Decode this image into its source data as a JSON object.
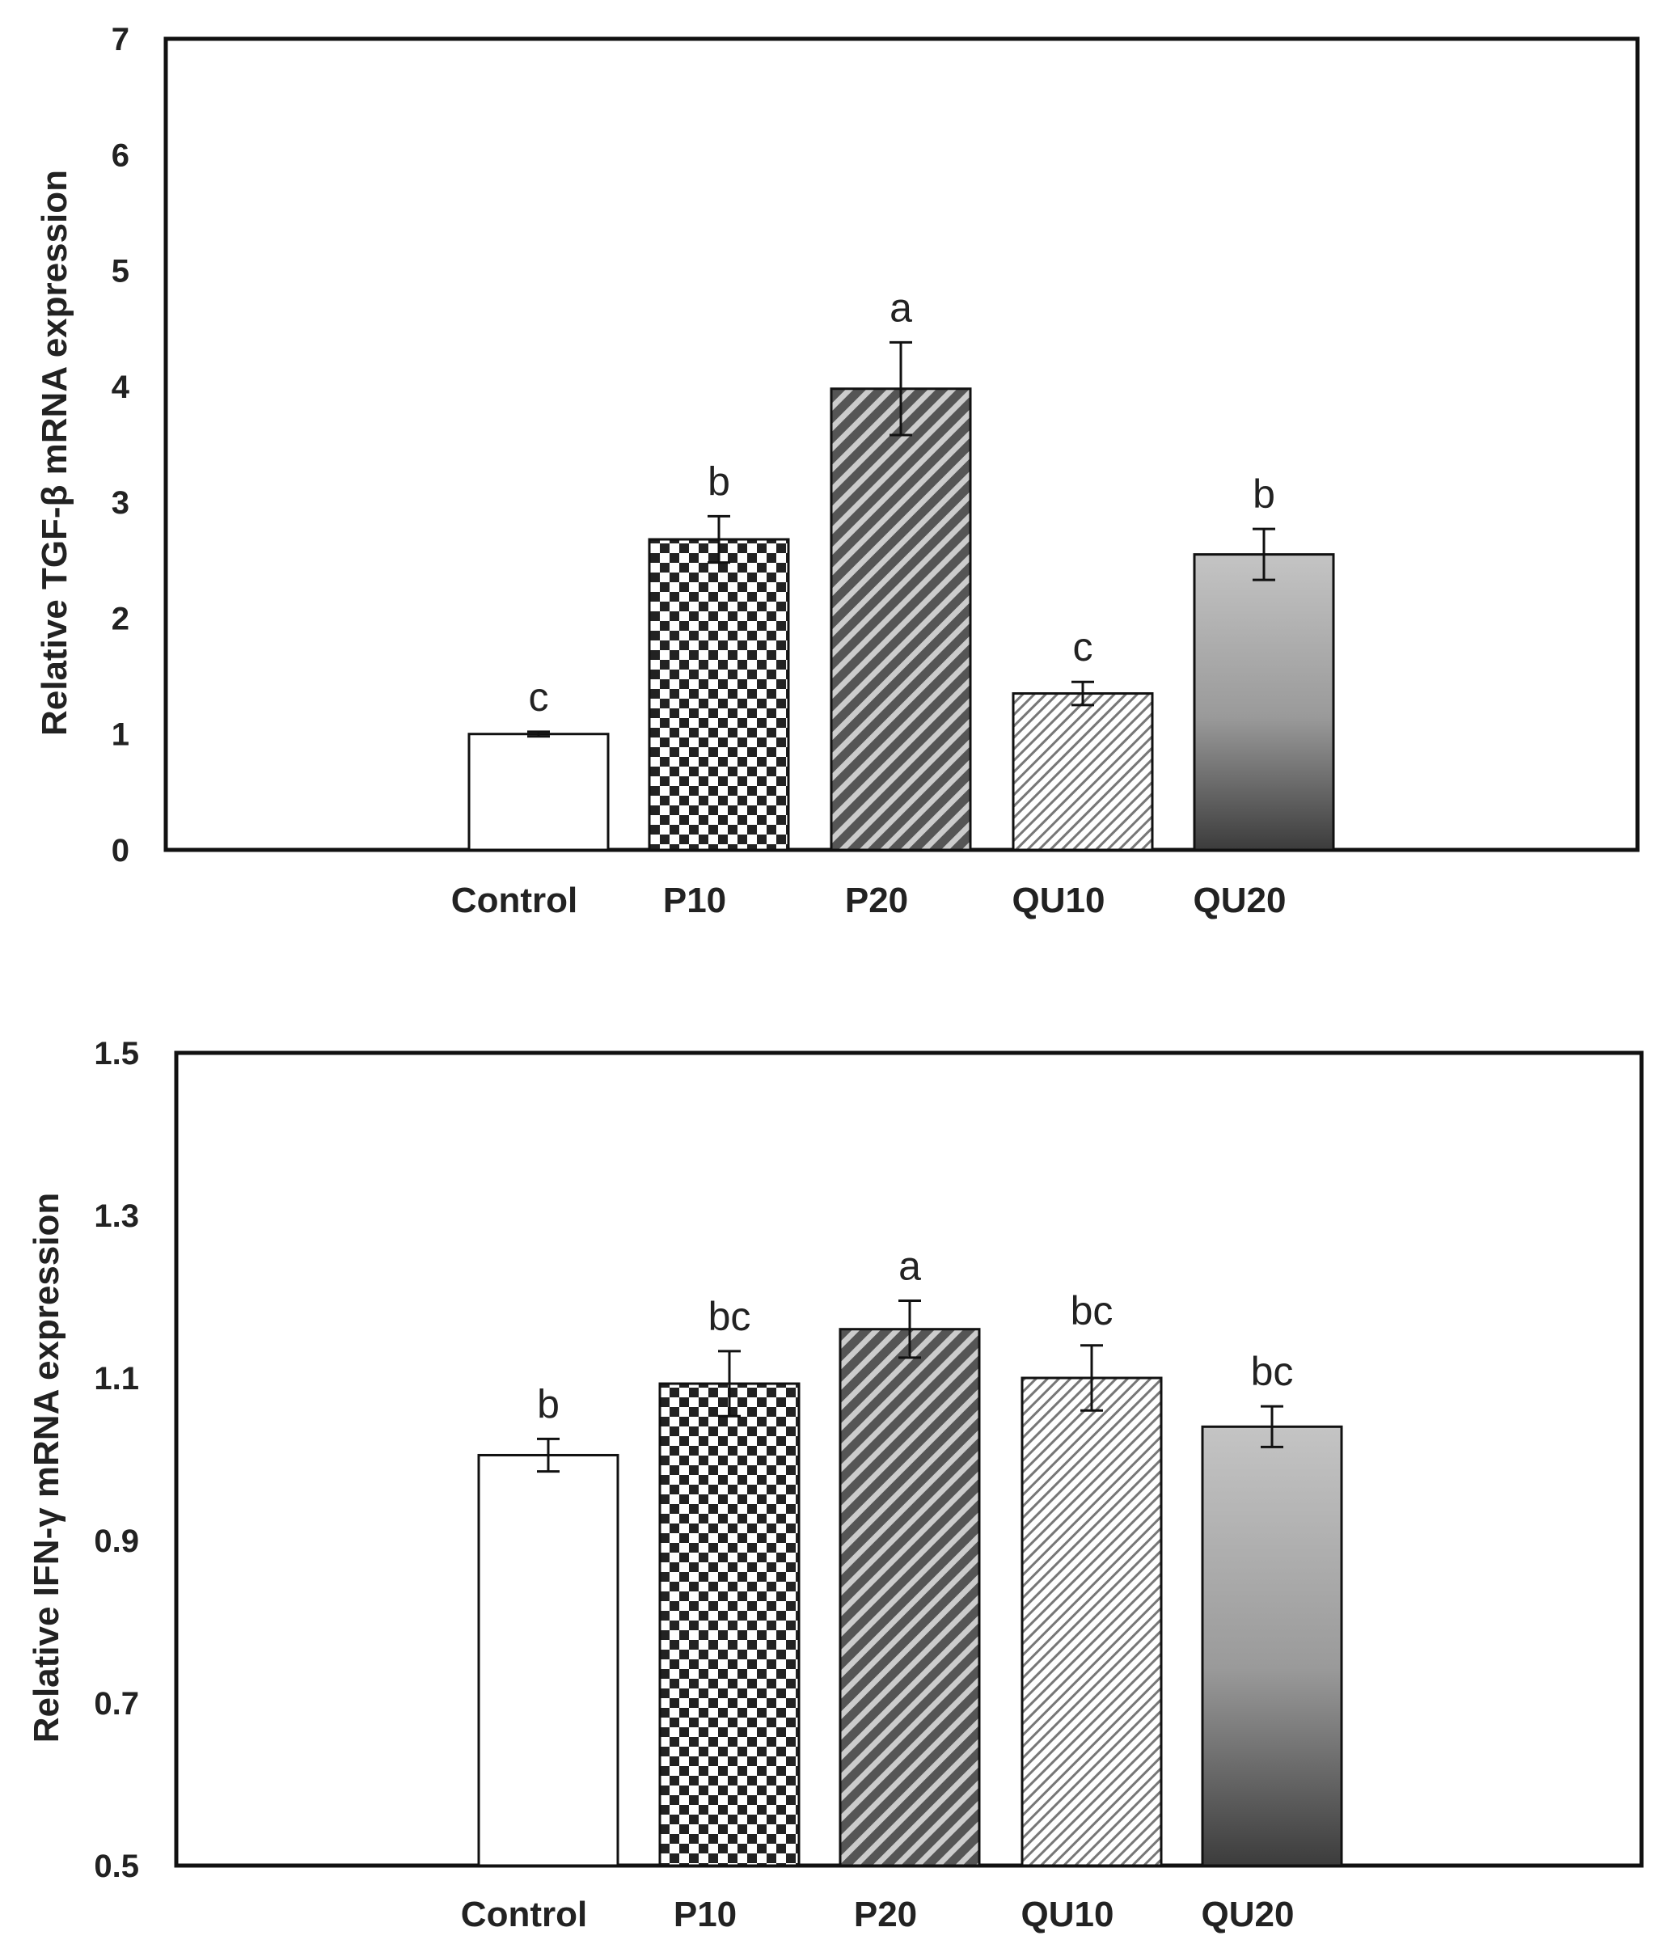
{
  "chart_data": [
    {
      "type": "bar",
      "title": "",
      "xlabel": "",
      "ylabel": "Relative TGF-β mRNA  expression",
      "categories": [
        "Control",
        "P10",
        "P20",
        "QU10",
        "QU20"
      ],
      "values": [
        1.0,
        2.68,
        3.98,
        1.35,
        2.55
      ],
      "errors": [
        0.02,
        0.2,
        0.4,
        0.1,
        0.22
      ],
      "significance": [
        "c",
        "b",
        "a",
        "c",
        "b"
      ],
      "ylim": [
        0,
        7
      ],
      "yticks": [
        "0",
        "1",
        "2",
        "3",
        "4",
        "5",
        "6",
        "7"
      ],
      "fills": [
        "white",
        "checker",
        "diag-dark",
        "diag-light",
        "gradient"
      ]
    },
    {
      "type": "bar",
      "title": "",
      "xlabel": "",
      "ylabel": "Relative IFN-γ mRNA  expression",
      "categories": [
        "Control",
        "P10",
        "P20",
        "QU10",
        "QU20"
      ],
      "values": [
        1.005,
        1.093,
        1.16,
        1.1,
        1.04
      ],
      "errors": [
        0.02,
        0.04,
        0.035,
        0.04,
        0.025
      ],
      "significance": [
        "b",
        "bc",
        "a",
        "bc",
        "bc"
      ],
      "ylim": [
        0.5,
        1.5
      ],
      "yticks": [
        "0.5",
        "0.7",
        "0.9",
        "1.1",
        "1.3",
        "1.5"
      ],
      "fills": [
        "white",
        "checker",
        "diag-dark",
        "diag-light",
        "gradient"
      ]
    }
  ]
}
